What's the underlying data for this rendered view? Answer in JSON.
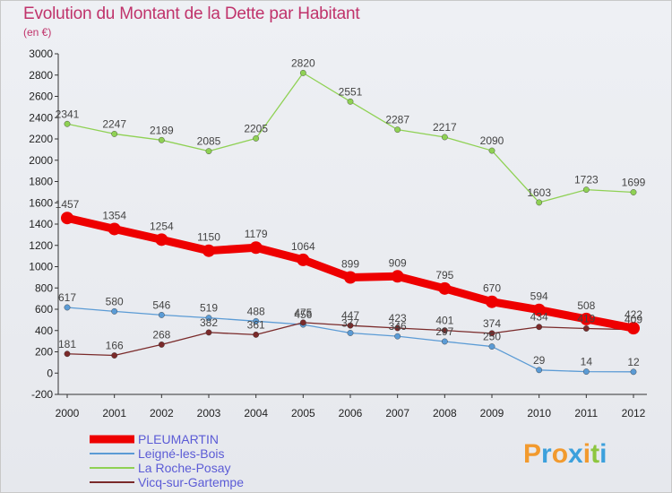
{
  "header": {
    "title": "Evolution du Montant de la Dette par Habitant",
    "subtitle": "(en €)"
  },
  "logo": {
    "text": "Proxiti",
    "letters": [
      "P",
      "r",
      "o",
      "x",
      "i",
      "t",
      "i"
    ],
    "colors": [
      "#f29a2e",
      "#3ca0dc",
      "#f29a2e",
      "#3ca0dc",
      "#f29a2e",
      "#8dc63f",
      "#3ca0dc"
    ]
  },
  "chart_data": {
    "type": "line",
    "title": "Evolution du Montant de la Dette par Habitant",
    "subtitle": "(en €)",
    "xlabel": "",
    "ylabel": "",
    "x": [
      "2000",
      "2001",
      "2002",
      "2003",
      "2004",
      "2005",
      "2006",
      "2007",
      "2008",
      "2009",
      "2010",
      "2011",
      "2012"
    ],
    "ylim": [
      -200,
      3000
    ],
    "yticks": [
      -200,
      0,
      200,
      400,
      600,
      800,
      1000,
      1200,
      1400,
      1600,
      1800,
      2000,
      2200,
      2400,
      2600,
      2800,
      3000
    ],
    "grid": false,
    "legend_position": "bottom-left",
    "series": [
      {
        "name": "PLEUMARTIN",
        "color": "#ee0000",
        "values": [
          1457,
          1354,
          1254,
          1150,
          1179,
          1064,
          899,
          909,
          795,
          670,
          594,
          508,
          422
        ]
      },
      {
        "name": "Leigné-les-Bois",
        "color": "#5b9bd5",
        "values": [
          617,
          580,
          546,
          519,
          488,
          456,
          377,
          346,
          297,
          250,
          29,
          14,
          12
        ]
      },
      {
        "name": "La Roche-Posay",
        "color": "#8fd154",
        "values": [
          2341,
          2247,
          2189,
          2085,
          2205,
          2820,
          2551,
          2287,
          2217,
          2090,
          1603,
          1723,
          1699
        ]
      },
      {
        "name": "Vicq-sur-Gartempe",
        "color": "#7a2a2a",
        "values": [
          181,
          166,
          268,
          382,
          361,
          475,
          447,
          423,
          401,
          374,
          434,
          419,
          409
        ]
      }
    ]
  }
}
